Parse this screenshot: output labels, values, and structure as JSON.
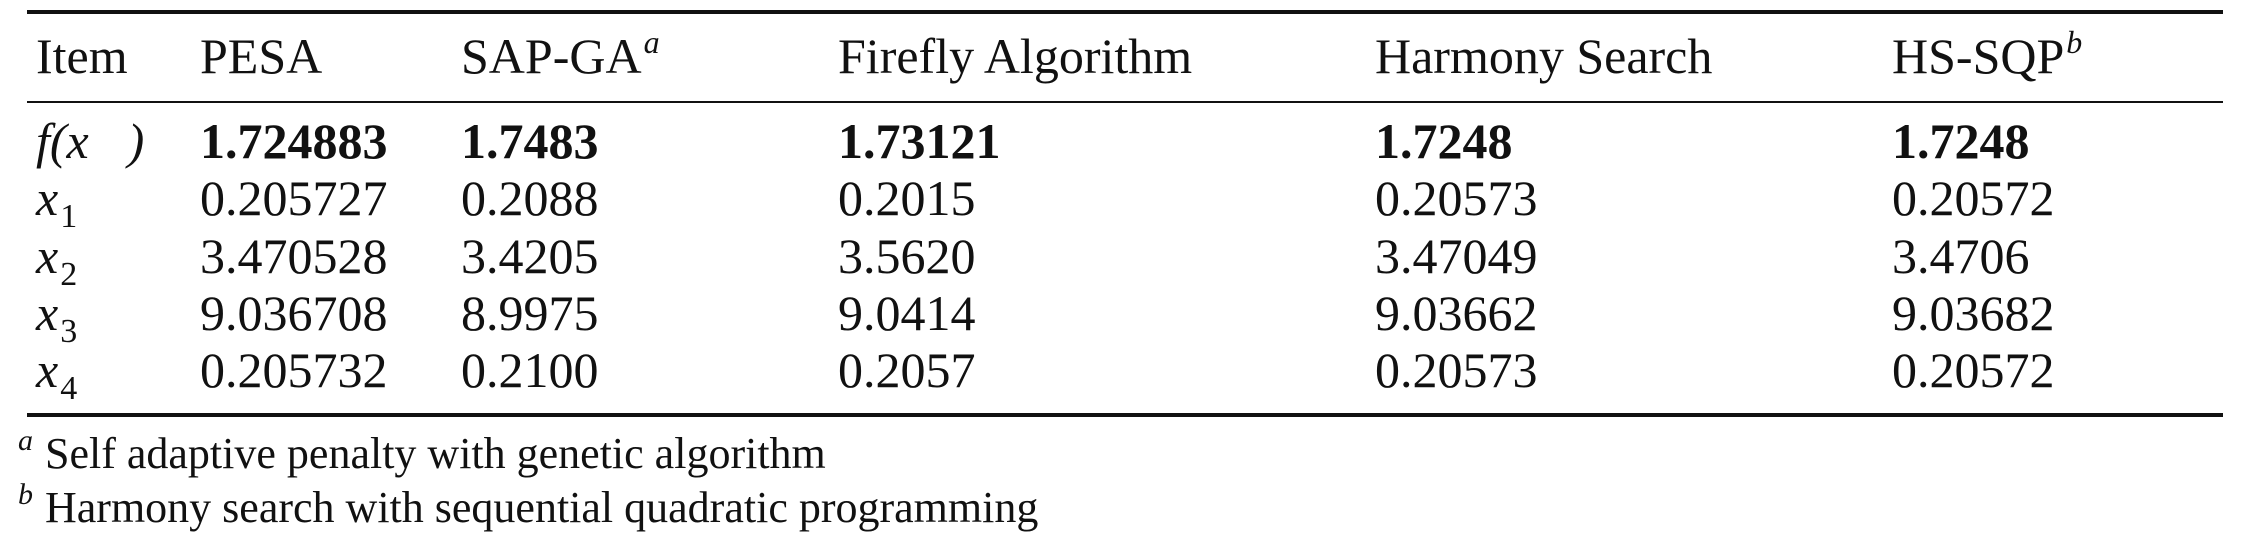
{
  "table": {
    "headers": {
      "item": "Item",
      "pesa": "PESA",
      "sapga": "SAP-GA",
      "sapga_mark": "a",
      "firefly": "Firefly Algorithm",
      "harmony": "Harmony Search",
      "hssqp": "HS-SQP",
      "hssqp_mark": "b"
    },
    "rows": [
      {
        "label": "f(x⃗)",
        "pesa": "1.724883",
        "sapga": "1.7483",
        "firefly": "1.73121",
        "harmony": "1.7248",
        "hssqp": "1.7248"
      },
      {
        "label_var": "x",
        "label_sub": "1",
        "pesa": "0.205727",
        "sapga": "0.2088",
        "firefly": "0.2015",
        "harmony": "0.20573",
        "hssqp": "0.20572"
      },
      {
        "label_var": "x",
        "label_sub": "2",
        "pesa": "3.470528",
        "sapga": "3.4205",
        "firefly": "3.5620",
        "harmony": "3.47049",
        "hssqp": "3.4706"
      },
      {
        "label_var": "x",
        "label_sub": "3",
        "pesa": "9.036708",
        "sapga": "8.9975",
        "firefly": "9.0414",
        "harmony": "9.03662",
        "hssqp": "9.03682"
      },
      {
        "label_var": "x",
        "label_sub": "4",
        "pesa": "0.205732",
        "sapga": "0.2100",
        "firefly": "0.2057",
        "harmony": "0.20573",
        "hssqp": "0.20572"
      }
    ]
  },
  "footnotes": [
    {
      "mark": "a",
      "text": "Self adaptive penalty with genetic algorithm"
    },
    {
      "mark": "b",
      "text": "Harmony search with sequential quadratic programming"
    }
  ]
}
